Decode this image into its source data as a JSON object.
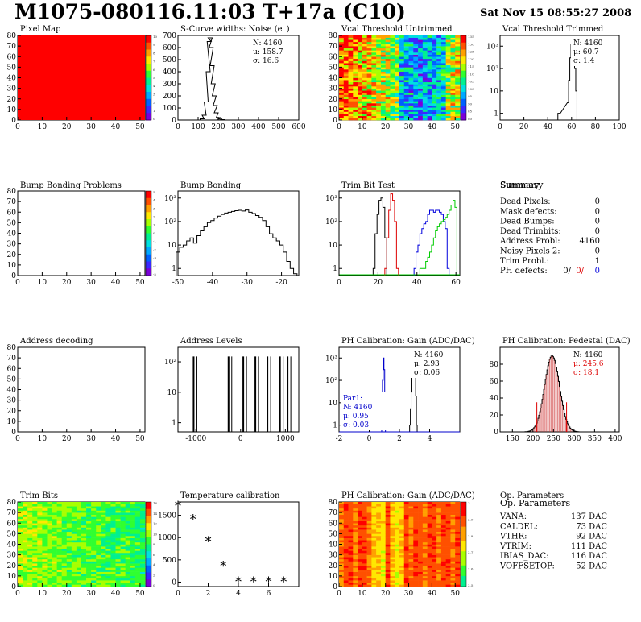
{
  "header": {
    "title": "M1075-080116.11:03 T+17a (C10)",
    "date": "Sat Nov 15 08:55:27 2008"
  },
  "panels": [
    {
      "id": "pixel-map",
      "title": "Pixel Map",
      "kind": "heat",
      "scheme": "solid",
      "xticks": [
        "0",
        "10",
        "20",
        "30",
        "40",
        "50"
      ],
      "yticks": [
        "0",
        "10",
        "20",
        "30",
        "40",
        "50",
        "60",
        "70",
        "80"
      ],
      "palette_labels": [
        "10",
        "9",
        "8",
        "7",
        "6",
        "5",
        "4",
        "3",
        "2",
        "1",
        "0"
      ]
    },
    {
      "id": "scurve-noise",
      "title": "S-Curve widths: Noise (e⁻)",
      "kind": "hist",
      "xticks": [
        "0",
        "100",
        "200",
        "300",
        "400",
        "500",
        "600"
      ],
      "yticks": [
        "0",
        "100",
        "200",
        "300",
        "400",
        "500",
        "600",
        "700"
      ],
      "stats": [
        {
          "label": "N: 4160",
          "color": "#000"
        },
        {
          "label": "μ: 158.7",
          "color": "#000"
        },
        {
          "label": "σ: 16.6",
          "color": "#000"
        }
      ]
    },
    {
      "id": "vcal-untrimmed",
      "title": "Vcal Threshold Untrimmed",
      "kind": "heat",
      "scheme": "vcal",
      "xticks": [
        "0",
        "10",
        "20",
        "30",
        "40",
        "50"
      ],
      "yticks": [
        "0",
        "10",
        "20",
        "30",
        "40",
        "50",
        "60",
        "70",
        "80"
      ],
      "palette_labels": [
        "135",
        "130",
        "125",
        "120",
        "115",
        "110",
        "105",
        "100",
        "95",
        "90",
        "85",
        "80"
      ]
    },
    {
      "id": "vcal-trimmed",
      "title": "Vcal Threshold Trimmed",
      "kind": "hist",
      "xticks": [
        "0",
        "20",
        "40",
        "60",
        "80",
        "100"
      ],
      "yticks": [
        "1",
        "10",
        "10²",
        "10³"
      ],
      "stats": [
        {
          "label": "N: 4160",
          "color": "#000"
        },
        {
          "label": "μ: 60.7",
          "color": "#000"
        },
        {
          "label": "σ: 1.4",
          "color": "#000"
        }
      ]
    },
    {
      "id": "bump-problems",
      "title": "Bump Bonding Problems",
      "kind": "empty",
      "xticks": [
        "0",
        "10",
        "20",
        "30",
        "40",
        "50"
      ],
      "yticks": [
        "0",
        "10",
        "20",
        "30",
        "40",
        "50",
        "60",
        "70",
        "80"
      ],
      "palette_labels": [
        "5",
        "4",
        "3",
        "2",
        "1",
        "0",
        "-1",
        "-2",
        "-3",
        "-4",
        "-5"
      ]
    },
    {
      "id": "bump-bonding",
      "title": "Bump Bonding",
      "kind": "hist",
      "xticks": [
        "-50",
        "-40",
        "-30",
        "-20"
      ],
      "yticks": [
        "1",
        "10",
        "10²",
        "10³"
      ]
    },
    {
      "id": "trim-bit-test",
      "title": "Trim Bit Test",
      "kind": "hist",
      "xticks": [
        "0",
        "20",
        "40",
        "60"
      ],
      "yticks": [
        "1",
        "10",
        "10²",
        "10³"
      ]
    },
    {
      "id": "summary",
      "title": "Summary",
      "kind": "summary",
      "rows": [
        {
          "label": "Dead Pixels:",
          "value": "0"
        },
        {
          "label": "Mask defects:",
          "value": "0"
        },
        {
          "label": "Dead Bumps:",
          "value": "0"
        },
        {
          "label": "Dead Trimbits:",
          "value": "0"
        },
        {
          "label": "Address Probl:",
          "value": "4160"
        },
        {
          "label": "Noisy Pixels 2:",
          "value": "0"
        },
        {
          "label": "Trim Probl.:",
          "value": "1"
        }
      ],
      "ph_label": "PH defects:",
      "ph_values": [
        {
          "v": "0/",
          "color": "#000"
        },
        {
          "v": "0/",
          "color": "#d00"
        },
        {
          "v": "0",
          "color": "#00d"
        }
      ]
    },
    {
      "id": "address-decoding",
      "title": "Address decoding",
      "kind": "empty",
      "xticks": [
        "0",
        "10",
        "20",
        "30",
        "40",
        "50"
      ],
      "yticks": [
        "0",
        "10",
        "20",
        "30",
        "40",
        "50",
        "60",
        "70",
        "80"
      ]
    },
    {
      "id": "address-levels",
      "title": "Address Levels",
      "kind": "hist",
      "xticks": [
        "-1000",
        "0",
        "1000"
      ],
      "yticks": [
        "1",
        "10",
        "10²"
      ]
    },
    {
      "id": "ph-gain",
      "title": "PH Calibration: Gain (ADC/DAC)",
      "kind": "hist",
      "xticks": [
        "-2",
        "0",
        "2",
        "4"
      ],
      "yticks": [
        "1",
        "10",
        "10²",
        "10³"
      ],
      "stats": [
        {
          "label": "N: 4160",
          "color": "#000"
        },
        {
          "label": "μ: 2.93",
          "color": "#000"
        },
        {
          "label": "σ: 0.06",
          "color": "#000"
        }
      ],
      "stats2": [
        {
          "label": "Par1:",
          "color": "#00c"
        },
        {
          "label": "N: 4160",
          "color": "#00c"
        },
        {
          "label": "μ: 0.95",
          "color": "#00c"
        },
        {
          "label": "σ: 0.03",
          "color": "#00c"
        }
      ]
    },
    {
      "id": "ph-pedestal",
      "title": "PH Calibration: Pedestal (DAC)",
      "kind": "hist",
      "xticks": [
        "150",
        "200",
        "250",
        "300",
        "350",
        "400"
      ],
      "yticks": [
        "0",
        "20",
        "40",
        "60",
        "80"
      ],
      "stats": [
        {
          "label": "N: 4160",
          "color": "#000"
        },
        {
          "label": "μ: 245.6",
          "color": "#d00"
        },
        {
          "label": "σ: 18.1",
          "color": "#d00"
        }
      ]
    },
    {
      "id": "trim-bits",
      "title": "Trim Bits",
      "kind": "heat",
      "scheme": "trimbits",
      "xticks": [
        "0",
        "10",
        "20",
        "30",
        "40",
        "50"
      ],
      "yticks": [
        "0",
        "10",
        "20",
        "30",
        "40",
        "50",
        "60",
        "70",
        "80"
      ],
      "palette_labels": [
        "16",
        "14",
        "12",
        "10",
        "8",
        "6",
        "4",
        "2",
        "0"
      ]
    },
    {
      "id": "temperature-calibration",
      "title": "Temperature calibration",
      "kind": "scatter",
      "xticks": [
        "0",
        "2",
        "4",
        "6"
      ],
      "yticks": [
        "0",
        "500",
        "1000",
        "1500"
      ]
    },
    {
      "id": "ph-gain-map",
      "title": "PH Calibration: Gain (ADC/DAC)",
      "kind": "heat",
      "scheme": "phgain",
      "xticks": [
        "0",
        "10",
        "20",
        "30",
        "40",
        "50"
      ],
      "yticks": [
        "0",
        "10",
        "20",
        "30",
        "40",
        "50",
        "60",
        "70",
        "80"
      ],
      "palette_labels": [
        "3",
        "2.9",
        "2.8",
        "2.7",
        "2.6",
        "2.5"
      ]
    },
    {
      "id": "op-parameters",
      "title": "Op. Parameters",
      "kind": "params",
      "rows": [
        {
          "label": "VANA:",
          "value": "137 DAC"
        },
        {
          "label": "CALDEL:",
          "value": "73 DAC"
        },
        {
          "label": "VTHR:",
          "value": "92 DAC"
        },
        {
          "label": "VTRIM:",
          "value": "111 DAC"
        },
        {
          "label": "IBIAS_DAC:",
          "value": "116 DAC"
        },
        {
          "label": "VOFFSETOP:",
          "value": "52 DAC"
        }
      ]
    }
  ],
  "chart_data": [
    {
      "type": "heatmap",
      "title": "Pixel Map",
      "xlim": [
        0,
        52
      ],
      "ylim": [
        0,
        80
      ],
      "uniform_value": 10,
      "zlim": [
        0,
        10
      ]
    },
    {
      "type": "bar",
      "title": "S-Curve widths: Noise (e⁻)",
      "xlim": [
        0,
        600
      ],
      "ylim": [
        0,
        700
      ],
      "x": [
        100,
        120,
        130,
        140,
        150,
        155,
        160,
        165,
        170,
        175,
        180,
        185,
        190,
        200,
        210,
        220,
        240
      ],
      "values": [
        0,
        10,
        40,
        150,
        400,
        650,
        680,
        600,
        450,
        300,
        200,
        120,
        60,
        20,
        8,
        3,
        0
      ],
      "stats": {
        "N": 4160,
        "mean": 158.7,
        "sigma": 16.6
      }
    },
    {
      "type": "heatmap",
      "title": "Vcal Threshold Untrimmed",
      "xlim": [
        0,
        52
      ],
      "ylim": [
        0,
        80
      ],
      "zlim": [
        80,
        135
      ]
    },
    {
      "type": "bar",
      "title": "Vcal Threshold Trimmed",
      "log_y": true,
      "xlim": [
        0,
        100
      ],
      "ylim": [
        0.5,
        3000
      ],
      "x": [
        49,
        50,
        57,
        58,
        59,
        60,
        61,
        62,
        63,
        64
      ],
      "values": [
        1,
        1,
        3,
        30,
        300,
        1200,
        1500,
        700,
        100,
        10
      ],
      "stats": {
        "N": 4160,
        "mean": 60.7,
        "sigma": 1.4
      }
    },
    {
      "type": "heatmap",
      "title": "Bump Bonding Problems",
      "xlim": [
        0,
        52
      ],
      "ylim": [
        0,
        80
      ],
      "zlim": [
        -5,
        5
      ],
      "empty": true
    },
    {
      "type": "line",
      "title": "Bump Bonding",
      "log_y": true,
      "xlim": [
        -50,
        -15
      ],
      "ylim": [
        0.5,
        2000
      ],
      "x": [
        -50,
        -49,
        -48,
        -47,
        -46,
        -45,
        -44,
        -43,
        -42,
        -41,
        -40,
        -39,
        -38,
        -37,
        -36,
        -35,
        -34,
        -33,
        -32,
        -31,
        -30,
        -29,
        -28,
        -27,
        -26,
        -25,
        -24,
        -23,
        -22,
        -21,
        -20,
        -19,
        -18,
        -17,
        -16
      ],
      "values": [
        5,
        8,
        10,
        15,
        20,
        12,
        25,
        40,
        60,
        90,
        110,
        140,
        170,
        200,
        230,
        250,
        270,
        290,
        300,
        280,
        310,
        250,
        220,
        180,
        150,
        110,
        60,
        30,
        20,
        15,
        10,
        5,
        2,
        1,
        0.6
      ]
    },
    {
      "type": "line",
      "title": "Trim Bit Test",
      "log_y": true,
      "xlim": [
        0,
        62
      ],
      "ylim": [
        0.5,
        2000
      ],
      "series": [
        {
          "color": "#000",
          "x": [
            18,
            19,
            20,
            21,
            22,
            23,
            24
          ],
          "values": [
            1,
            30,
            200,
            800,
            1000,
            400,
            20
          ]
        },
        {
          "color": "#d00",
          "x": [
            24,
            25,
            26,
            27,
            28,
            29,
            30
          ],
          "values": [
            1,
            20,
            300,
            1500,
            800,
            100,
            1
          ]
        },
        {
          "color": "#00d",
          "x": [
            39,
            40,
            41,
            42,
            43,
            44,
            45,
            46,
            47,
            48,
            49,
            50,
            51,
            52,
            53,
            54,
            55,
            56
          ],
          "values": [
            1,
            5,
            10,
            30,
            50,
            80,
            100,
            200,
            300,
            300,
            250,
            300,
            300,
            250,
            200,
            100,
            50,
            1
          ]
        },
        {
          "color": "#0c0",
          "x": [
            42,
            43,
            44,
            45,
            46,
            47,
            48,
            49,
            50,
            51,
            52,
            53,
            54,
            55,
            56,
            57,
            58,
            59,
            60
          ],
          "values": [
            1,
            1,
            1,
            2,
            3,
            5,
            10,
            20,
            40,
            60,
            80,
            100,
            120,
            150,
            200,
            300,
            500,
            800,
            400
          ]
        }
      ]
    },
    {
      "type": "table",
      "title": "Summary",
      "rows": [
        [
          "Dead Pixels:",
          0
        ],
        [
          "Mask defects:",
          0
        ],
        [
          "Dead Bumps:",
          0
        ],
        [
          "Dead Trimbits:",
          0
        ],
        [
          "Address Probl:",
          4160
        ],
        [
          "Noisy Pixels 2:",
          0
        ],
        [
          "Trim Probl.:",
          1
        ],
        [
          "PH defects:",
          "0/ 0/ 0"
        ]
      ]
    },
    {
      "type": "heatmap",
      "title": "Address decoding",
      "xlim": [
        0,
        52
      ],
      "ylim": [
        0,
        80
      ],
      "empty": true
    },
    {
      "type": "bar",
      "title": "Address Levels",
      "log_y": true,
      "xlim": [
        -1400,
        1300
      ],
      "ylim": [
        0.5,
        300
      ],
      "x": [
        -1050,
        -270,
        60,
        330,
        600,
        880,
        1050
      ],
      "values": [
        150,
        150,
        150,
        150,
        150,
        150,
        150
      ]
    },
    {
      "type": "line",
      "title": "PH Calibration: Gain (ADC/DAC)",
      "log_y": true,
      "xlim": [
        -2,
        6
      ],
      "ylim": [
        0.5,
        3000
      ],
      "series": [
        {
          "name": "",
          "color": "#000",
          "x": [
            2.7,
            2.75,
            2.8,
            2.85,
            2.9,
            2.95,
            3.0,
            3.05,
            3.1,
            3.15
          ],
          "values": [
            1,
            5,
            30,
            200,
            600,
            800,
            500,
            150,
            20,
            1
          ]
        },
        {
          "name": "Par1",
          "color": "#00c",
          "x": [
            0.85,
            0.9,
            0.95,
            1.0,
            1.05
          ],
          "values": [
            1,
            100,
            1000,
            300,
            1
          ]
        }
      ],
      "stats": {
        "N": 4160,
        "mean": 2.93,
        "sigma": 0.06
      },
      "par1_stats": {
        "N": 4160,
        "mean": 0.95,
        "sigma": 0.03
      }
    },
    {
      "type": "bar",
      "title": "PH Calibration: Pedestal (DAC)",
      "xlim": [
        120,
        410
      ],
      "ylim": [
        0,
        100
      ],
      "mean": 245.6,
      "sigma": 18.1,
      "peak": 90,
      "stats": {
        "N": 4160,
        "mean": 245.6,
        "sigma": 18.1
      }
    },
    {
      "type": "heatmap",
      "title": "Trim Bits",
      "xlim": [
        0,
        52
      ],
      "ylim": [
        0,
        80
      ],
      "zlim": [
        0,
        16
      ]
    },
    {
      "type": "scatter",
      "title": "Temperature calibration",
      "xlim": [
        0,
        8
      ],
      "ylim": [
        -100,
        1800
      ],
      "x": [
        0,
        1,
        2,
        3,
        4,
        5,
        6,
        7
      ],
      "y": [
        1700,
        1400,
        900,
        350,
        0,
        0,
        0,
        0
      ]
    },
    {
      "type": "heatmap",
      "title": "PH Calibration: Gain (ADC/DAC)",
      "xlim": [
        0,
        52
      ],
      "ylim": [
        0,
        80
      ],
      "zlim": [
        2.5,
        3.0
      ]
    },
    {
      "type": "table",
      "title": "Op. Parameters",
      "rows": [
        [
          "VANA:",
          "137 DAC"
        ],
        [
          "CALDEL:",
          "73 DAC"
        ],
        [
          "VTHR:",
          "92 DAC"
        ],
        [
          "VTRIM:",
          "111 DAC"
        ],
        [
          "IBIAS_DAC:",
          "116 DAC"
        ],
        [
          "VOFFSETOP:",
          "52 DAC"
        ]
      ]
    }
  ]
}
